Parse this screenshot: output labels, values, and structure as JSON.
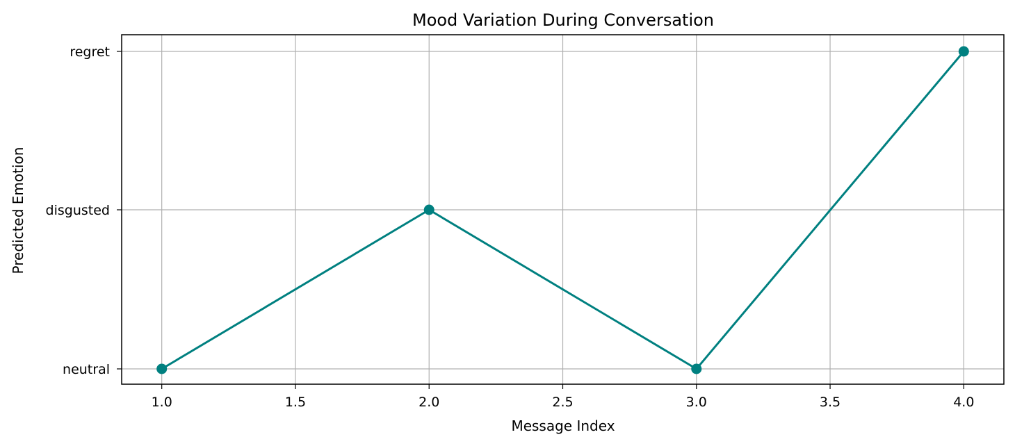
{
  "chart_data": {
    "type": "line",
    "title": "Mood Variation During Conversation",
    "xlabel": "Message Index",
    "ylabel": "Predicted Emotion",
    "x_ticks": [
      "1.0",
      "1.5",
      "2.0",
      "2.5",
      "3.0",
      "3.5",
      "4.0"
    ],
    "y_categories": [
      "neutral",
      "disgusted",
      "regret"
    ],
    "x": [
      1,
      2,
      3,
      4
    ],
    "y": [
      "neutral",
      "disgusted",
      "neutral",
      "regret"
    ],
    "xlim": [
      0.85,
      4.15
    ],
    "grid": true,
    "colors": {
      "line": "#008080",
      "grid": "#b0b0b0",
      "axes": "#000000"
    }
  }
}
